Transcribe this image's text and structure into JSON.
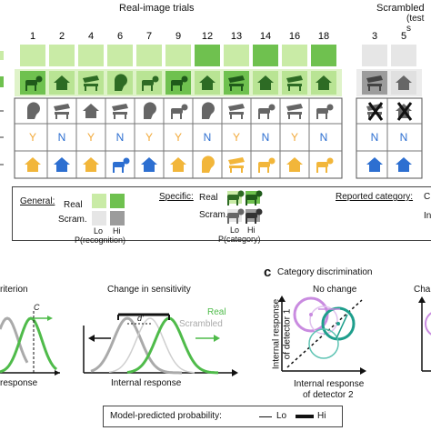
{
  "header": {
    "real_trials_label": "Real-image trials",
    "scrambled_label": "Scrambled",
    "scrambled_sub": "(test s"
  },
  "columns": {
    "real": [
      "1",
      "2",
      "4",
      "6",
      "7",
      "9",
      "12",
      "13",
      "14",
      "16",
      "18"
    ],
    "scrambled": [
      "3",
      "5"
    ]
  },
  "grid": {
    "row1_recognition": [
      "lo",
      "lo",
      "lo",
      "lo",
      "lo",
      "lo",
      "hi",
      "lo",
      "hi",
      "lo",
      "hi"
    ],
    "row2_category_icons": [
      "dog",
      "house",
      "bench",
      "head",
      "dog",
      "dog",
      "house",
      "bench",
      "house",
      "bench",
      "house"
    ],
    "row2_category_shade": [
      "hi",
      "lo",
      "lo",
      "lo",
      "lo",
      "hi",
      "lo",
      "hi",
      "lo",
      "lo",
      "lo"
    ],
    "row3_stimulus_icons": [
      "head",
      "bench",
      "house",
      "bench",
      "head",
      "dog",
      "head",
      "bench",
      "dog",
      "bench",
      "dog"
    ],
    "row4_responses": [
      "Y",
      "N",
      "Y",
      "N",
      "Y",
      "Y",
      "N",
      "Y",
      "N",
      "Y",
      "N"
    ],
    "row5_reported_icons": [
      "house",
      "house",
      "house",
      "dog",
      "house",
      "house",
      "head",
      "bench",
      "dog",
      "house",
      "dog"
    ],
    "row5_reported_colors": [
      "#f2b63a",
      "#2d6fd1",
      "#f2b63a",
      "#2d6fd1",
      "#2d6fd1",
      "#f2b63a",
      "#f2b63a",
      "#f2b63a",
      "#f2b63a",
      "#f2b63a",
      "#f2b63a"
    ],
    "scram_row4": [
      "N",
      "N"
    ],
    "scram_row5_colors": [
      "#2d6fd1",
      "#2d6fd1"
    ]
  },
  "legend": {
    "general_label": "General:",
    "real": "Real",
    "scram": "Scram.",
    "lo": "Lo",
    "hi": "Hi",
    "p_recognition": "P(recognition)",
    "specific_label": "Specific:",
    "specific_real": "Real",
    "specific_scram": "Scram.",
    "specific_lo": "Lo",
    "specific_hi": "Hi",
    "p_category": "P(category)",
    "reported_label": "Reported category:",
    "reported_cut": "C",
    "reported_cut2": "In"
  },
  "panel_b": {
    "left_title": "riterion",
    "left_c": "C",
    "left_xlabel": "response",
    "title": "Change in sensitivity",
    "dprime": "d'",
    "real": "Real",
    "scrambled": "Scrambled",
    "xlabel": "Internal response"
  },
  "panel_c": {
    "letter": "c",
    "title": "Category discrimination",
    "subtitle": "No change",
    "ylabel_1": "Internal response",
    "ylabel_2": "of detector 1",
    "xlabel_1": "Internal response",
    "xlabel_2": "of detector 2",
    "right_cut": "Cha"
  },
  "footer": {
    "label": "Model-predicted probability:",
    "lo": "Lo",
    "hi": "Hi"
  },
  "colors": {
    "green_lo": "#c9eba6",
    "green_hi": "#6fc14f",
    "gray_lo": "#e6e6e6",
    "gray_hi": "#9c9c9c",
    "yes": "#f2a93a",
    "no": "#2d6fd1",
    "real_curve": "#4fbb4a",
    "scram_curve": "#aaaaaa",
    "teal": "#1e9e8c",
    "violet": "#c98be0"
  }
}
